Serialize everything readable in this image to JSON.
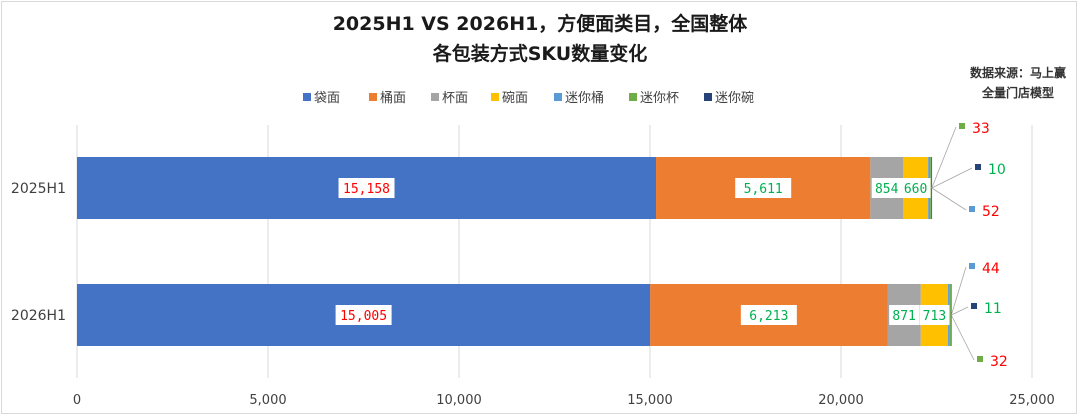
{
  "chart_data": {
    "type": "bar",
    "orientation": "horizontal",
    "stacked": true,
    "title_lines": [
      "2025H1 VS 2026H1，方便面类目，全国整体",
      "各包装方式SKU数量变化"
    ],
    "source_lines": [
      "数据来源：马上赢",
      "全量门店模型"
    ],
    "categories": [
      "2025H1",
      "2026H1"
    ],
    "xlim": [
      0,
      25000
    ],
    "xticks": [
      0,
      5000,
      10000,
      15000,
      20000,
      25000
    ],
    "xtick_labels": [
      "0",
      "5,000",
      "10,000",
      "15,000",
      "20,000",
      "25,000"
    ],
    "grid": "vertical",
    "legend_position": "top",
    "series": [
      {
        "name": "袋面",
        "color": "#4472c4",
        "values": [
          15158,
          15005
        ],
        "labels": [
          "15,158",
          "15,005"
        ]
      },
      {
        "name": "桶面",
        "color": "#ed7d31",
        "values": [
          5611,
          6213
        ],
        "labels": [
          "5,611",
          "6,213"
        ]
      },
      {
        "name": "杯面",
        "color": "#a5a5a5",
        "values": [
          854,
          871
        ],
        "labels": [
          "854",
          "871"
        ]
      },
      {
        "name": "碗面",
        "color": "#ffc000",
        "values": [
          660,
          713
        ],
        "labels": [
          "660",
          "713"
        ]
      },
      {
        "name": "迷你桶",
        "color": "#5b9bd5",
        "values": [
          52,
          44
        ],
        "labels": [
          "52",
          "44"
        ]
      },
      {
        "name": "迷你杯",
        "color": "#70ad47",
        "values": [
          33,
          32
        ],
        "labels": [
          "33",
          "32"
        ]
      },
      {
        "name": "迷你碗",
        "color": "#264478",
        "values": [
          10,
          11
        ],
        "labels": [
          "10",
          "11"
        ]
      }
    ],
    "label_colors": {
      "red": "#ff0000",
      "green": "#00b050"
    },
    "label_color_by_series": [
      [
        "red",
        "red"
      ],
      [
        "green",
        "green"
      ],
      [
        "green",
        "green"
      ],
      [
        "green",
        "green"
      ],
      [
        "red",
        "red"
      ],
      [
        "red",
        "red"
      ],
      [
        "green",
        "green"
      ]
    ]
  }
}
